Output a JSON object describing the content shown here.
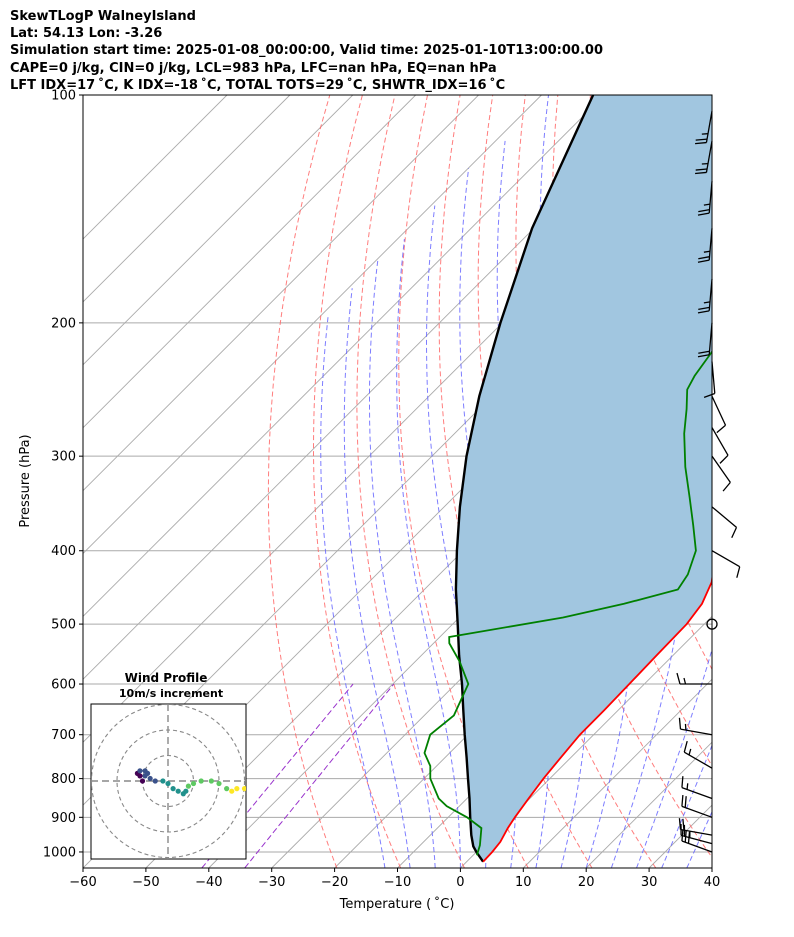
{
  "header": {
    "lines": [
      "SkewTLogP WalneyIsland",
      "Lat: 54.13   Lon: -3.26",
      "Simulation start time: 2025-01-08_00:00:00, Valid time: 2025-01-10T13:00:00.00",
      "CAPE=0 j/kg, CIN=0 j/kg, LCL=983 hPa, LFC=nan hPa, EQ=nan hPa",
      "LFT IDX=17 ˚C, K IDX=-18 ˚C, TOTAL TOTS=29 ˚C, SHWTR_IDX=16 ˚C"
    ]
  },
  "chart_data": [
    {
      "type": "line",
      "subtype": "skew-t log-p",
      "xlabel": "Temperature ( ˚C)",
      "ylabel": "Pressure (hPa)",
      "xlim": [
        -60,
        40
      ],
      "ylim": [
        1050,
        100
      ],
      "y_scale": "log",
      "x_ticks": [
        "−60",
        "−50",
        "−40",
        "−30",
        "−20",
        "−10",
        "0",
        "10",
        "20",
        "30",
        "40"
      ],
      "y_ticks": [
        "100",
        "200",
        "300",
        "400",
        "500",
        "600",
        "700",
        "800",
        "900",
        "1000"
      ],
      "grid": true,
      "colors": {
        "temperature": "#ff0000",
        "dewpoint": "#008000",
        "parcel": "#000000",
        "shading": "#a1c6e0",
        "dry_adiabats": "#ff6666",
        "moist_adiabats": "#6666ff",
        "mixing_ratio": "#9933cc",
        "isotherms": "#aaaaaa"
      },
      "series": [],
      "temperature": [
        {
          "p": 1030,
          "t": 2.6
        },
        {
          "p": 1000,
          "t": 2.5
        },
        {
          "p": 970,
          "t": 2.2
        },
        {
          "p": 930,
          "t": 1.2
        },
        {
          "p": 900,
          "t": 0.6
        },
        {
          "p": 850,
          "t": -0.2
        },
        {
          "p": 800,
          "t": -1.0
        },
        {
          "p": 750,
          "t": -1.6
        },
        {
          "p": 700,
          "t": -2.2
        },
        {
          "p": 650,
          "t": -2.2
        },
        {
          "p": 600,
          "t": -2.4
        },
        {
          "p": 550,
          "t": -2.6
        },
        {
          "p": 500,
          "t": -2.8
        },
        {
          "p": 470,
          "t": -3.6
        },
        {
          "p": 440,
          "t": -5.5
        },
        {
          "p": 420,
          "t": -7.6
        },
        {
          "p": 400,
          "t": -9.8
        },
        {
          "p": 370,
          "t": -13.5
        },
        {
          "p": 340,
          "t": -17.6
        },
        {
          "p": 310,
          "t": -22.0
        },
        {
          "p": 290,
          "t": -25.5
        },
        {
          "p": 270,
          "t": -28.0
        },
        {
          "p": 255,
          "t": -29.3
        },
        {
          "p": 240,
          "t": -30.0
        },
        {
          "p": 225,
          "t": -31.4
        },
        {
          "p": 200,
          "t": -36.0
        },
        {
          "p": 175,
          "t": -40.0
        },
        {
          "p": 165,
          "t": -43.9
        },
        {
          "p": 150,
          "t": -49.5
        },
        {
          "p": 130,
          "t": -57.0
        },
        {
          "p": 115,
          "t": -62.5
        },
        {
          "p": 100,
          "t": -69.3
        }
      ],
      "dewpoint": [
        {
          "p": 1010,
          "t": 0.6
        },
        {
          "p": 980,
          "t": -0.5
        },
        {
          "p": 930,
          "t": -3.0
        },
        {
          "p": 900,
          "t": -7.0
        },
        {
          "p": 870,
          "t": -12.0
        },
        {
          "p": 850,
          "t": -14.5
        },
        {
          "p": 800,
          "t": -19.0
        },
        {
          "p": 770,
          "t": -21.0
        },
        {
          "p": 740,
          "t": -24.0
        },
        {
          "p": 700,
          "t": -26.0
        },
        {
          "p": 660,
          "t": -25.3
        },
        {
          "p": 600,
          "t": -28.0
        },
        {
          "p": 560,
          "t": -33.0
        },
        {
          "p": 530,
          "t": -37.5
        },
        {
          "p": 520,
          "t": -38.5
        },
        {
          "p": 490,
          "t": -23.5
        },
        {
          "p": 470,
          "t": -16.0
        },
        {
          "p": 450,
          "t": -9.7
        },
        {
          "p": 430,
          "t": -10.5
        },
        {
          "p": 400,
          "t": -13.0
        },
        {
          "p": 370,
          "t": -17.5
        },
        {
          "p": 340,
          "t": -22.5
        },
        {
          "p": 310,
          "t": -28.0
        },
        {
          "p": 280,
          "t": -33.5
        },
        {
          "p": 260,
          "t": -37.0
        },
        {
          "p": 245,
          "t": -40.0
        },
        {
          "p": 235,
          "t": -41.0
        },
        {
          "p": 215,
          "t": -42.3
        },
        {
          "p": 200,
          "t": -44.0
        },
        {
          "p": 180,
          "t": -47.0
        },
        {
          "p": 160,
          "t": -50.0
        },
        {
          "p": 140,
          "t": -52.0
        },
        {
          "p": 120,
          "t": -53.0
        },
        {
          "p": 100,
          "t": -54.8
        }
      ],
      "parcel": [
        {
          "p": 1030,
          "t": 2.6
        },
        {
          "p": 1000,
          "t": 0.0
        },
        {
          "p": 983,
          "t": -1.4
        },
        {
          "p": 950,
          "t": -3.5
        },
        {
          "p": 900,
          "t": -6.5
        },
        {
          "p": 850,
          "t": -9.6
        },
        {
          "p": 800,
          "t": -13.0
        },
        {
          "p": 750,
          "t": -16.6
        },
        {
          "p": 700,
          "t": -20.5
        },
        {
          "p": 650,
          "t": -24.6
        },
        {
          "p": 600,
          "t": -29.0
        },
        {
          "p": 550,
          "t": -34.0
        },
        {
          "p": 500,
          "t": -39.2
        },
        {
          "p": 450,
          "t": -45.0
        },
        {
          "p": 400,
          "t": -51.0
        },
        {
          "p": 350,
          "t": -57.5
        },
        {
          "p": 300,
          "t": -64.5
        },
        {
          "p": 250,
          "t": -72.0
        },
        {
          "p": 200,
          "t": -80.3
        },
        {
          "p": 150,
          "t": -90.3
        },
        {
          "p": 100,
          "t": -101.8
        }
      ],
      "wind_barbs": [
        {
          "p": 1000,
          "speed_kt": 30,
          "dir_deg": 290
        },
        {
          "p": 975,
          "speed_kt": 25,
          "dir_deg": 285
        },
        {
          "p": 950,
          "speed_kt": 20,
          "dir_deg": 280
        },
        {
          "p": 900,
          "speed_kt": 20,
          "dir_deg": 290
        },
        {
          "p": 850,
          "speed_kt": 15,
          "dir_deg": 290
        },
        {
          "p": 775,
          "speed_kt": 15,
          "dir_deg": 300
        },
        {
          "p": 700,
          "speed_kt": 15,
          "dir_deg": 280
        },
        {
          "p": 600,
          "speed_kt": 15,
          "dir_deg": 270
        },
        {
          "p": 500,
          "speed_kt": 0,
          "dir_deg": 0
        },
        {
          "p": 400,
          "speed_kt": 10,
          "dir_deg": 120
        },
        {
          "p": 350,
          "speed_kt": 10,
          "dir_deg": 130
        },
        {
          "p": 300,
          "speed_kt": 10,
          "dir_deg": 145
        },
        {
          "p": 275,
          "speed_kt": 10,
          "dir_deg": 150
        },
        {
          "p": 250,
          "speed_kt": 10,
          "dir_deg": 155
        },
        {
          "p": 225,
          "speed_kt": 10,
          "dir_deg": 175
        },
        {
          "p": 200,
          "speed_kt": 20,
          "dir_deg": 185
        },
        {
          "p": 175,
          "speed_kt": 25,
          "dir_deg": 185
        },
        {
          "p": 150,
          "speed_kt": 25,
          "dir_deg": 185
        },
        {
          "p": 130,
          "speed_kt": 25,
          "dir_deg": 185
        },
        {
          "p": 115,
          "speed_kt": 25,
          "dir_deg": 190
        },
        {
          "p": 105,
          "speed_kt": 25,
          "dir_deg": 190
        }
      ]
    },
    {
      "type": "scatter",
      "subtype": "hodograph",
      "title": "Wind Profile",
      "subtitle": "10m/s increment",
      "rings_ms": [
        10,
        20,
        30
      ],
      "series": [],
      "points_ms": [
        {
          "u": -10,
          "v": 0
        },
        {
          "u": -11,
          "v": 2
        },
        {
          "u": -12,
          "v": 3
        },
        {
          "u": -11,
          "v": 4
        },
        {
          "u": -9,
          "v": 4
        },
        {
          "u": -8,
          "v": 3
        },
        {
          "u": -9,
          "v": 2
        },
        {
          "u": -7,
          "v": 1
        },
        {
          "u": -5,
          "v": 0
        },
        {
          "u": -2,
          "v": 0
        },
        {
          "u": 0,
          "v": -1
        },
        {
          "u": 2,
          "v": -3
        },
        {
          "u": 4,
          "v": -4
        },
        {
          "u": 6,
          "v": -5
        },
        {
          "u": 7,
          "v": -4
        },
        {
          "u": 8,
          "v": -2
        },
        {
          "u": 10,
          "v": -1
        },
        {
          "u": 13,
          "v": 0
        },
        {
          "u": 17,
          "v": 0
        },
        {
          "u": 20,
          "v": -1
        },
        {
          "u": 23,
          "v": -3
        },
        {
          "u": 25,
          "v": -4
        },
        {
          "u": 27,
          "v": -3
        },
        {
          "u": 30,
          "v": -3
        }
      ]
    }
  ]
}
